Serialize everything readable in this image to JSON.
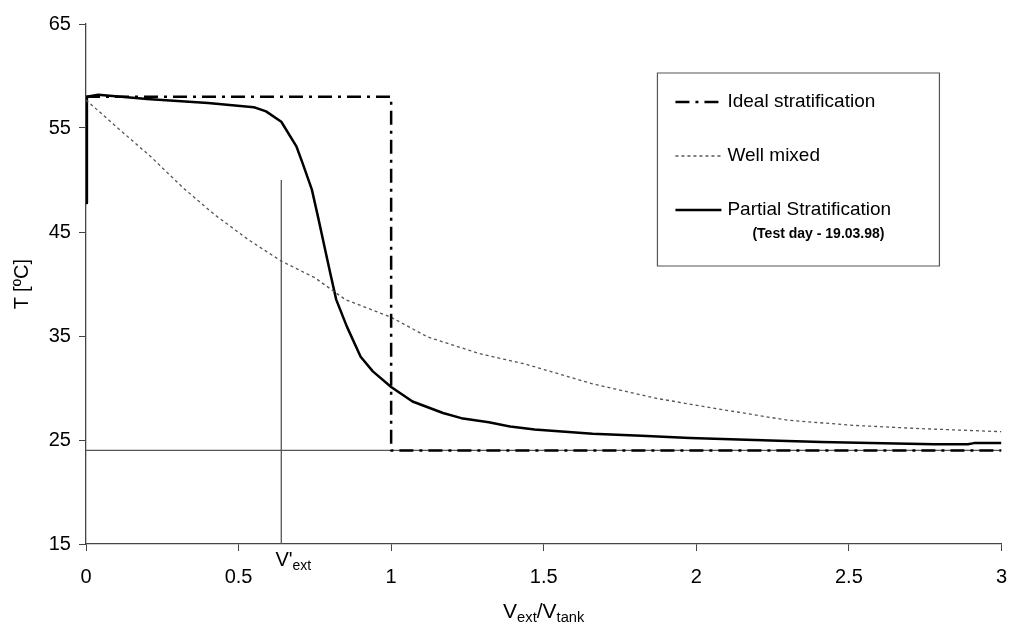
{
  "chart_data": {
    "type": "line",
    "xlabel": "V$_{ext}$/V$_{tank}$",
    "ylabel": "T [ºC]",
    "xlim": [
      0,
      3
    ],
    "xticks": [
      0,
      0.5,
      1,
      1.5,
      2,
      2.5,
      3
    ],
    "ylim": [
      15,
      65
    ],
    "yticks": [
      15,
      25,
      35,
      45,
      55,
      65
    ],
    "grid": false,
    "legend": "top right",
    "marker": "none",
    "series": [
      {
        "name": "Ideal stratification",
        "color": "#000000",
        "line_style": "dashed",
        "x": [
          0,
          1,
          1,
          3
        ],
        "values": [
          58,
          58,
          24,
          24
        ]
      },
      {
        "name": "Well mixed",
        "color": "#555555",
        "line_style": "dotted",
        "x": [
          0,
          0.1,
          0.21,
          0.32,
          0.42,
          0.53,
          0.64,
          0.75,
          0.85,
          1,
          1.12,
          1.29,
          1.44,
          1.66,
          1.87,
          2.09,
          2.3,
          2.52,
          2.73,
          3
        ],
        "values": [
          57.7,
          55.1,
          52.3,
          49.2,
          46.7,
          44.3,
          42.2,
          40.6,
          38.5,
          36.8,
          34.9,
          33.3,
          32.3,
          30.4,
          29,
          27.9,
          26.9,
          26.4,
          26.1,
          25.8
        ]
      },
      {
        "name": "Partial Stratification",
        "color": "#000000",
        "line_style": "solid",
        "x": [
          0,
          0.003,
          0.04,
          0.2,
          0.4,
          0.55,
          0.59,
          0.64,
          0.69,
          0.71,
          0.74,
          0.76,
          0.8,
          0.82,
          0.855,
          0.9,
          0.94,
          1,
          1.07,
          1.17,
          1.23,
          1.32,
          1.39,
          1.47,
          1.66,
          1.82,
          1.98,
          2.19,
          2.41,
          2.57,
          2.78,
          2.89,
          2.91,
          3
        ],
        "values": [
          47.8,
          58,
          58.2,
          57.8,
          57.4,
          57,
          56.6,
          55.6,
          53.2,
          51.6,
          49.1,
          46.5,
          41.1,
          38.5,
          35.9,
          33,
          31.6,
          30.1,
          28.7,
          27.6,
          27.1,
          26.7,
          26.3,
          26,
          25.6,
          25.4,
          25.2,
          25,
          24.8,
          24.7,
          24.6,
          24.6,
          24.7,
          24.7
        ]
      }
    ],
    "ref_lines": [
      {
        "axis": "y",
        "value": 24,
        "color": "#555555"
      },
      {
        "axis": "x",
        "value": 0.64,
        "label": "V'$_{ext}$",
        "color": "#555555"
      }
    ],
    "annotations": [
      "(Test day - 19.03.98)"
    ]
  }
}
